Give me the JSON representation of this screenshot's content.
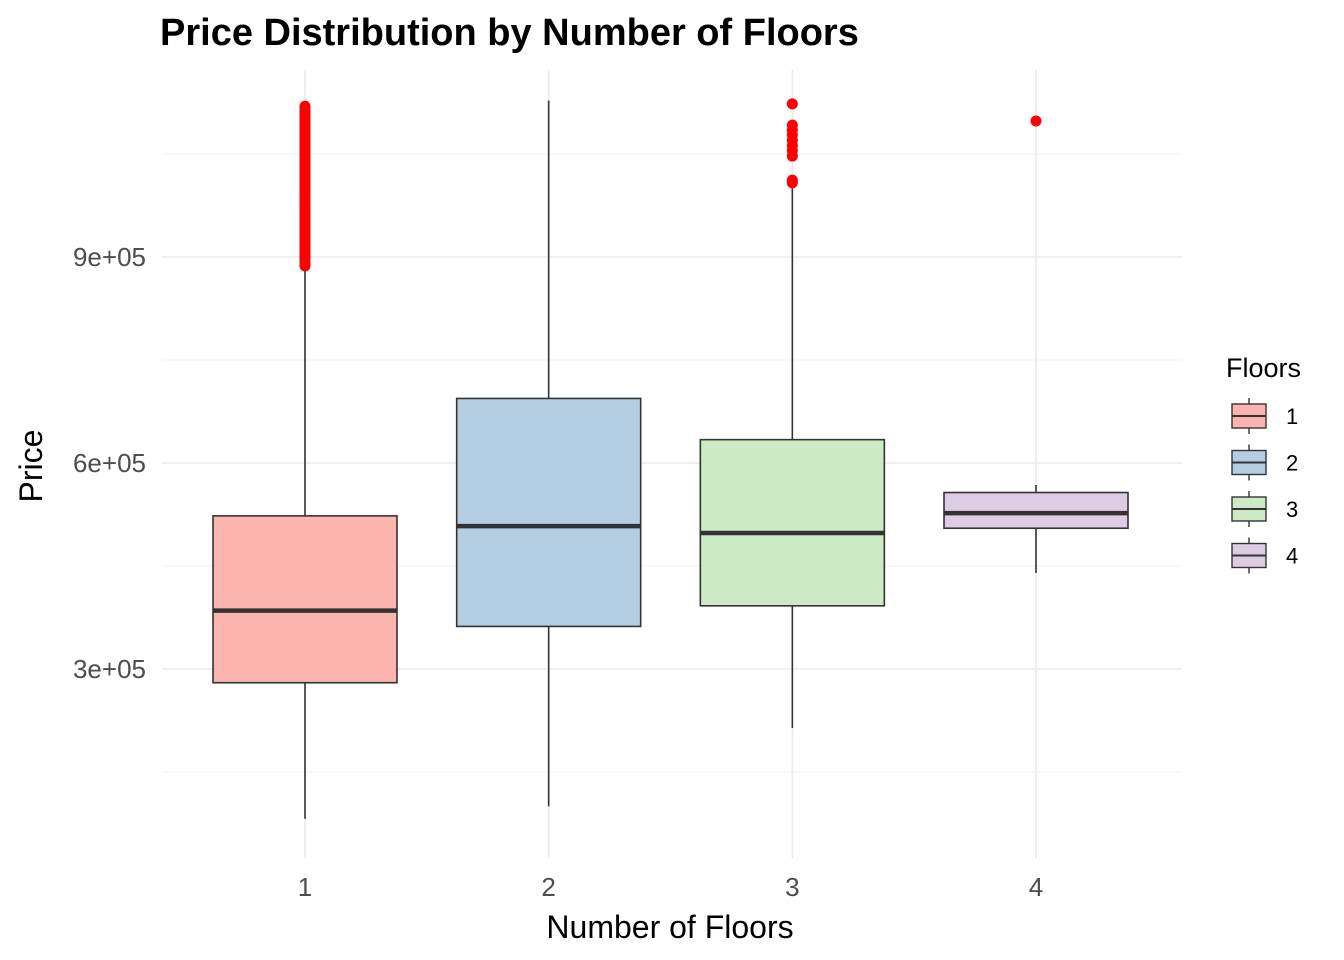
{
  "chart_data": {
    "type": "box",
    "title": "Price Distribution by Number of Floors",
    "xlabel": "Number of Floors",
    "ylabel": "Price",
    "categories": [
      "1",
      "2",
      "3",
      "4"
    ],
    "yticks": [
      300000,
      600000,
      900000
    ],
    "ytick_labels": [
      "3e+05",
      "6e+05",
      "9e+05"
    ],
    "ylim": [
      75000,
      1140000
    ],
    "grid": true,
    "legend": {
      "title": "Floors",
      "position": "right",
      "entries": [
        "1",
        "2",
        "3",
        "4"
      ]
    },
    "colors": {
      "1": "#fbb4ae",
      "2": "#b3cde3",
      "3": "#ccebc5",
      "4": "#decbe4",
      "outlier": "#ff0000",
      "box_line": "#333333"
    },
    "series": [
      {
        "floors": "1",
        "whisker_low": 82000,
        "q1": 280000,
        "median": 385000,
        "q3": 523000,
        "whisker_high": 887000,
        "outliers_range": [
          887000,
          1120000
        ]
      },
      {
        "floors": "2",
        "whisker_low": 100000,
        "q1": 362000,
        "median": 508000,
        "q3": 694000,
        "whisker_high": 1128000,
        "outliers": []
      },
      {
        "floors": "3",
        "whisker_low": 214000,
        "q1": 392000,
        "median": 498000,
        "q3": 634000,
        "whisker_high": 1000000,
        "outliers": [
          1008000,
          1012000,
          1047000,
          1055000,
          1062000,
          1070000,
          1078000,
          1085000,
          1092000,
          1123000
        ]
      },
      {
        "floors": "4",
        "whisker_low": 440000,
        "q1": 505000,
        "median": 527000,
        "q3": 557000,
        "whisker_high": 568000,
        "outliers": [
          1098000
        ]
      }
    ]
  }
}
